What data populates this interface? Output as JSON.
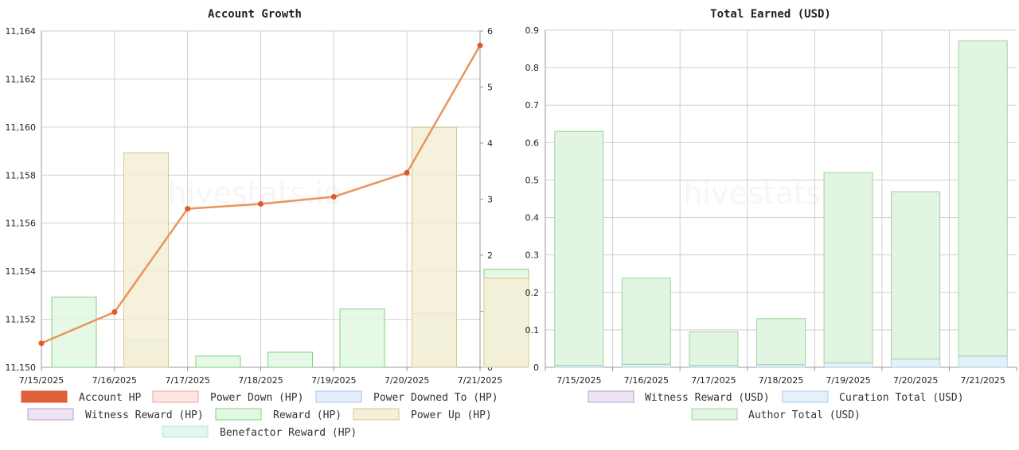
{
  "watermark": "hivestats.io",
  "charts": [
    {
      "type": "bar+line",
      "title": "Account Growth",
      "categories": [
        "7/15/2025",
        "7/16/2025",
        "7/17/2025",
        "7/18/2025",
        "7/19/2025",
        "7/20/2025",
        "7/21/2025"
      ],
      "y_left": {
        "min": 11150,
        "max": 11164,
        "ticks": [
          "11,150",
          "11,152",
          "11,154",
          "11,156",
          "11,158",
          "11,160",
          "11,162",
          "11,164"
        ]
      },
      "y_right": {
        "min": 0,
        "max": 6,
        "ticks": [
          "0",
          "1",
          "2",
          "3",
          "4",
          "5",
          "6"
        ]
      },
      "line_series": {
        "name": "Account HP",
        "color": "#e06030",
        "values": [
          11151.0,
          11152.3,
          11156.6,
          11156.8,
          11157.1,
          11158.1,
          11163.4
        ]
      },
      "bar_series": [
        {
          "name": "Reward (HP)",
          "color": "#7fd17f",
          "fill": "#e2f8e2",
          "values": [
            1.25,
            0.48,
            0.2,
            0.27,
            1.04,
            0.96,
            1.75
          ]
        },
        {
          "name": "Power Up (HP)",
          "color": "#d6c98c",
          "fill": "#f4efd6",
          "values": [
            0.0,
            3.83,
            0.0,
            0.0,
            0.0,
            4.28,
            1.59
          ]
        }
      ],
      "legend": [
        {
          "label": "Account HP",
          "fill": "#e0623a",
          "stroke": "#d65530"
        },
        {
          "label": "Power Down (HP)",
          "fill": "#fde6e4",
          "stroke": "#f0a3a0"
        },
        {
          "label": "Power Downed To (HP)",
          "fill": "#e6eefc",
          "stroke": "#a7bff0"
        },
        {
          "label": "Witness Reward (HP)",
          "fill": "#ece4f4",
          "stroke": "#b79cc9"
        },
        {
          "label": "Reward (HP)",
          "fill": "#e2f8e2",
          "stroke": "#7fd17f"
        },
        {
          "label": "Power Up (HP)",
          "fill": "#f4efd6",
          "stroke": "#d6c98c"
        },
        {
          "label": "Benefactor Reward (HP)",
          "fill": "#e4f6f4",
          "stroke": "#b2e4df"
        }
      ]
    },
    {
      "type": "stacked-bar",
      "title": "Total Earned (USD)",
      "categories": [
        "7/15/2025",
        "7/16/2025",
        "7/17/2025",
        "7/18/2025",
        "7/19/2025",
        "7/20/2025",
        "7/21/2025"
      ],
      "y": {
        "min": 0,
        "max": 0.9,
        "ticks": [
          "0",
          "0.1",
          "0.2",
          "0.3",
          "0.4",
          "0.5",
          "0.6",
          "0.7",
          "0.8",
          "0.9"
        ]
      },
      "series": [
        {
          "name": "Witness Reward (USD)",
          "color": "#b79cc9",
          "fill": "#ece4f4",
          "values": [
            0,
            0,
            0,
            0,
            0,
            0,
            0
          ]
        },
        {
          "name": "Curation Total (USD)",
          "color": "#a9cde8",
          "fill": "#e5f1fa",
          "values": [
            0.005,
            0.008,
            0.005,
            0.007,
            0.012,
            0.022,
            0.03
          ]
        },
        {
          "name": "Author Total (USD)",
          "color": "#9fd49f",
          "fill": "#e2f4e2",
          "values": [
            0.625,
            0.23,
            0.09,
            0.123,
            0.508,
            0.447,
            0.842
          ]
        }
      ],
      "legend": [
        {
          "label": "Witness Reward (USD)",
          "fill": "#ece4f4",
          "stroke": "#b79cc9"
        },
        {
          "label": "Curation Total (USD)",
          "fill": "#e5f1fa",
          "stroke": "#a9cde8"
        },
        {
          "label": "Author Total (USD)",
          "fill": "#e2f4e2",
          "stroke": "#9fd49f"
        }
      ]
    }
  ],
  "chart_data": [
    {
      "type": "bar",
      "title": "Account Growth",
      "categories": [
        "7/15/2025",
        "7/16/2025",
        "7/17/2025",
        "7/18/2025",
        "7/19/2025",
        "7/20/2025",
        "7/21/2025"
      ],
      "series": [
        {
          "name": "Account HP",
          "type": "line",
          "axis": "left",
          "values": [
            11151.0,
            11152.3,
            11156.6,
            11156.8,
            11157.1,
            11158.1,
            11163.4
          ]
        },
        {
          "name": "Reward (HP)",
          "type": "bar",
          "axis": "right",
          "values": [
            1.25,
            0.48,
            0.2,
            0.27,
            1.04,
            0.96,
            1.75
          ]
        },
        {
          "name": "Power Up (HP)",
          "type": "bar",
          "axis": "right",
          "values": [
            0.0,
            3.83,
            0.0,
            0.0,
            0.0,
            4.28,
            1.59
          ]
        },
        {
          "name": "Power Down (HP)",
          "type": "bar",
          "axis": "right",
          "values": [
            0,
            0,
            0,
            0,
            0,
            0,
            0
          ]
        },
        {
          "name": "Power Downed To (HP)",
          "type": "bar",
          "axis": "right",
          "values": [
            0,
            0,
            0,
            0,
            0,
            0,
            0
          ]
        },
        {
          "name": "Witness Reward (HP)",
          "type": "bar",
          "axis": "right",
          "values": [
            0,
            0,
            0,
            0,
            0,
            0,
            0
          ]
        },
        {
          "name": "Benefactor Reward (HP)",
          "type": "bar",
          "axis": "right",
          "values": [
            0,
            0,
            0,
            0,
            0,
            0,
            0
          ]
        }
      ],
      "ylim_left": [
        11150,
        11164
      ],
      "ylim_right": [
        0,
        6
      ],
      "xlabel": "",
      "ylabel": "",
      "grid": true,
      "legend": "bottom"
    },
    {
      "type": "bar",
      "title": "Total Earned (USD)",
      "stacked": true,
      "categories": [
        "7/15/2025",
        "7/16/2025",
        "7/17/2025",
        "7/18/2025",
        "7/19/2025",
        "7/20/2025",
        "7/21/2025"
      ],
      "series": [
        {
          "name": "Witness Reward (USD)",
          "values": [
            0,
            0,
            0,
            0,
            0,
            0,
            0
          ]
        },
        {
          "name": "Curation Total (USD)",
          "values": [
            0.005,
            0.008,
            0.005,
            0.007,
            0.012,
            0.022,
            0.03
          ]
        },
        {
          "name": "Author Total (USD)",
          "values": [
            0.625,
            0.23,
            0.09,
            0.123,
            0.508,
            0.447,
            0.842
          ]
        }
      ],
      "ylim": [
        0,
        0.9
      ],
      "xlabel": "",
      "ylabel": "",
      "grid": true,
      "legend": "bottom"
    }
  ]
}
